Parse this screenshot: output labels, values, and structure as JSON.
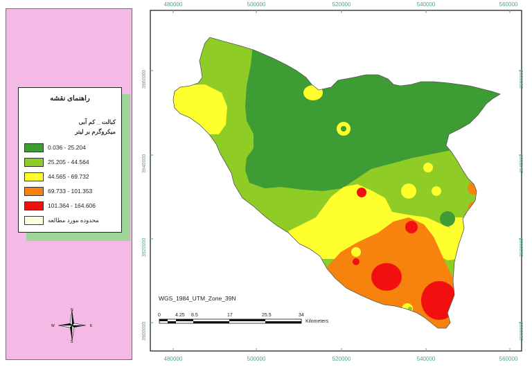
{
  "legend": {
    "title": "راهنمای نقشه",
    "subtitle1": "کبالت _ کم آبی",
    "subtitle2": "میکروگرم بر لیتر",
    "classes": [
      {
        "label": "0.036 - 25.204",
        "color": "#3d9c33"
      },
      {
        "label": "25.205 - 44.564",
        "color": "#8fcc26"
      },
      {
        "label": "44.565 - 69.732",
        "color": "#ffff2e"
      },
      {
        "label": "69.733 - 101.353",
        "color": "#f7820d"
      },
      {
        "label": "101.364 - 164.606",
        "color": "#f20f0f"
      },
      {
        "label": "محدوده مورد مطالعه",
        "color": "#ffffe0"
      }
    ]
  },
  "north_arrow": {
    "n": "N",
    "s": "S",
    "e": "E",
    "w": "W"
  },
  "axes": {
    "x_top": [
      "480000",
      "500000",
      "520000",
      "540000",
      "560000"
    ],
    "x_bottom": [
      "480000",
      "500000",
      "520000",
      "540000",
      "560000"
    ],
    "y_left": [
      "3960000",
      "3940000",
      "3920000",
      "3900000"
    ],
    "y_right": [
      "3960000",
      "3940000",
      "3920000",
      "3900000"
    ]
  },
  "projection": "WGS_1984_UTM_Zone_39N",
  "scale_bar": {
    "labels": [
      "0",
      "4.25",
      "8.5",
      "17",
      "25.5",
      "34"
    ],
    "unit": "Kilometers"
  }
}
